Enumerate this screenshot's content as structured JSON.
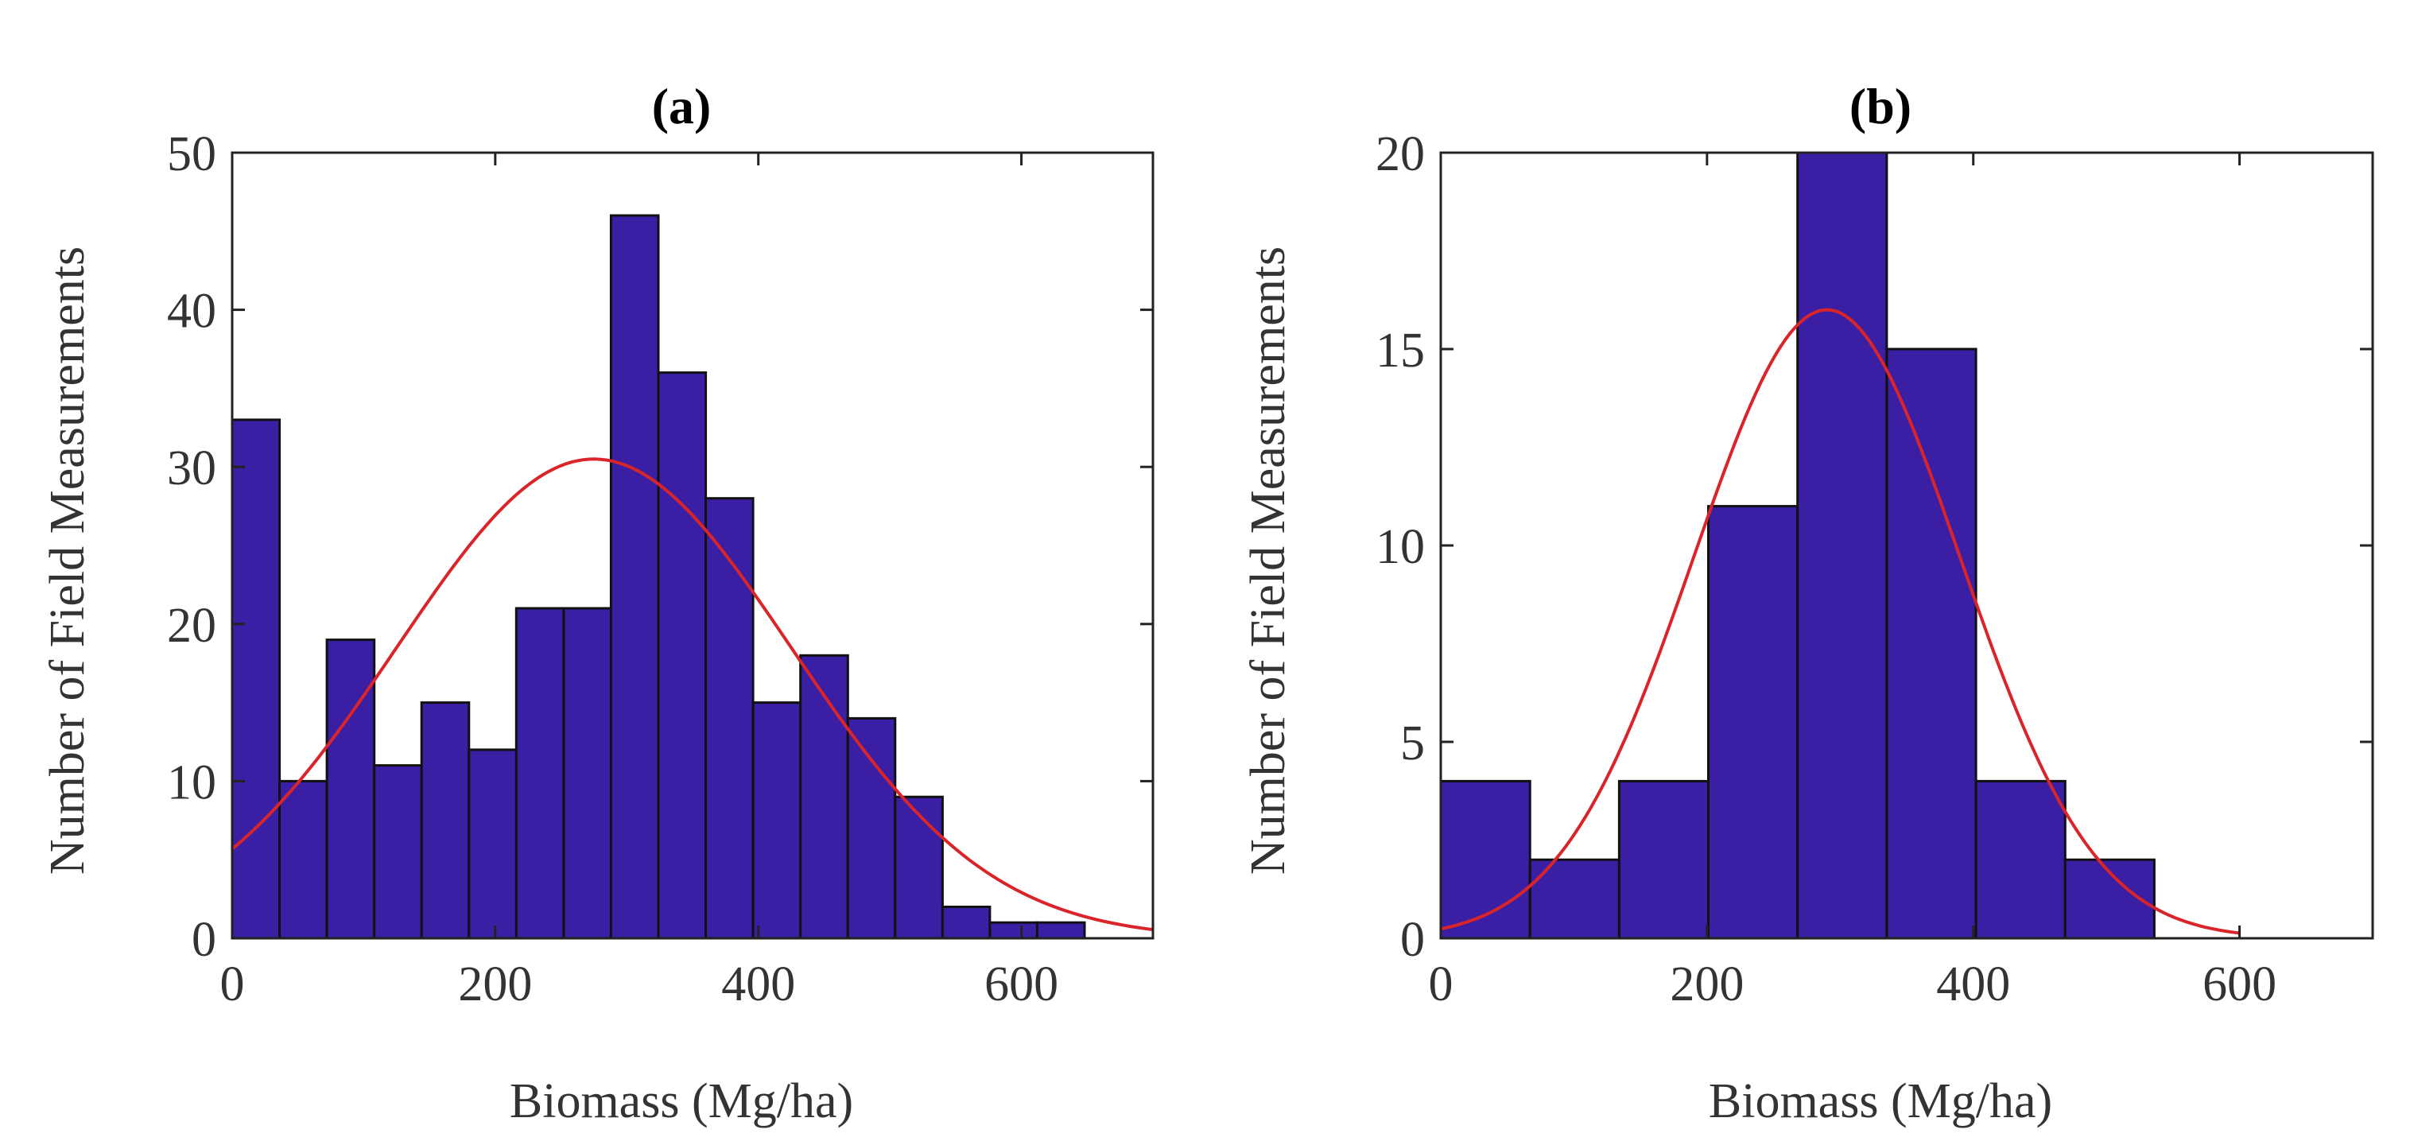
{
  "figure_colors": {
    "bar_fill": "#3A1FA4",
    "fit_line": "#D9252A",
    "axes": "#222222"
  },
  "chart_data": [
    {
      "type": "bar",
      "panel": "a",
      "title": "(a)",
      "xlabel": "Biomass (Mg/ha)",
      "ylabel": "Number of Field Measurements",
      "xlim": [
        0,
        700
      ],
      "ylim": [
        0,
        50
      ],
      "xticks": [
        0,
        200,
        400,
        600
      ],
      "yticks": [
        0,
        10,
        20,
        30,
        40,
        50
      ],
      "xtick_labels": [
        "0",
        "200",
        "400",
        "600"
      ],
      "ytick_labels": [
        "0",
        "10",
        "20",
        "30",
        "40",
        "50"
      ],
      "bin_width": 36,
      "bin_edges": [
        0,
        36,
        72,
        108,
        144,
        180,
        216,
        252,
        288,
        324,
        360,
        396,
        432,
        468,
        504,
        540,
        576,
        612,
        648
      ],
      "values": [
        33,
        10,
        19,
        11,
        15,
        12,
        21,
        21,
        46,
        36,
        28,
        15,
        18,
        14,
        9,
        2,
        1,
        1
      ],
      "fit": {
        "type": "normal",
        "mean": 275,
        "std": 150,
        "peak": 30.5
      }
    },
    {
      "type": "bar",
      "panel": "b",
      "title": "(b)",
      "xlabel": "Biomass (Mg/ha)",
      "ylabel": "Number of Field Measurements",
      "xlim": [
        0,
        700
      ],
      "ylim": [
        0,
        20
      ],
      "xticks": [
        0,
        200,
        400,
        600
      ],
      "yticks": [
        0,
        5,
        10,
        15,
        20
      ],
      "xtick_labels": [
        "0",
        "200",
        "400",
        "600"
      ],
      "ytick_labels": [
        "0",
        "5",
        "10",
        "15",
        "20"
      ],
      "bin_width": 67,
      "bin_edges": [
        0,
        67,
        134,
        201,
        268,
        335,
        402,
        469,
        536
      ],
      "values": [
        4,
        2,
        4,
        11,
        20,
        15,
        4,
        2
      ],
      "fit": {
        "type": "normal",
        "mean": 290,
        "std": 100,
        "peak": 16,
        "x_end": 600
      }
    }
  ]
}
